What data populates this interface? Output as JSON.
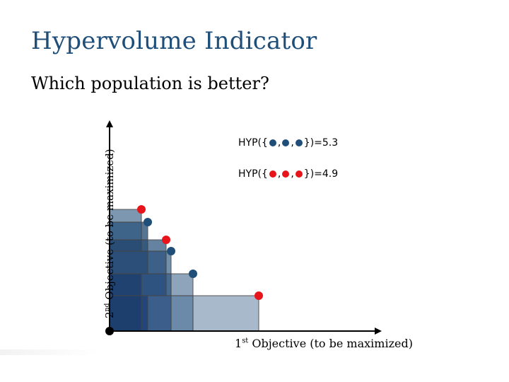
{
  "slide": {
    "title": "Hypervolume Indicator",
    "subtitle": "Which population is better?"
  },
  "axes": {
    "y_label_prefix": "2",
    "y_label_sup": "nd",
    "y_label_rest": " Objective (to be maximized)",
    "x_label_prefix": "1",
    "x_label_sup": "st",
    "x_label_rest": " Objective (to be maximized)"
  },
  "hyp_blue": {
    "prefix": "HYP({",
    "sep1": ",",
    "sep2": ",",
    "suffix": "})=5.3"
  },
  "hyp_red": {
    "prefix": "HYP({",
    "sep1": ",",
    "sep2": ",",
    "suffix": "})=4.9"
  },
  "colors": {
    "blue_point": "#1f4e79",
    "red_point": "#e8141b",
    "reference_point": "#000000"
  }
}
